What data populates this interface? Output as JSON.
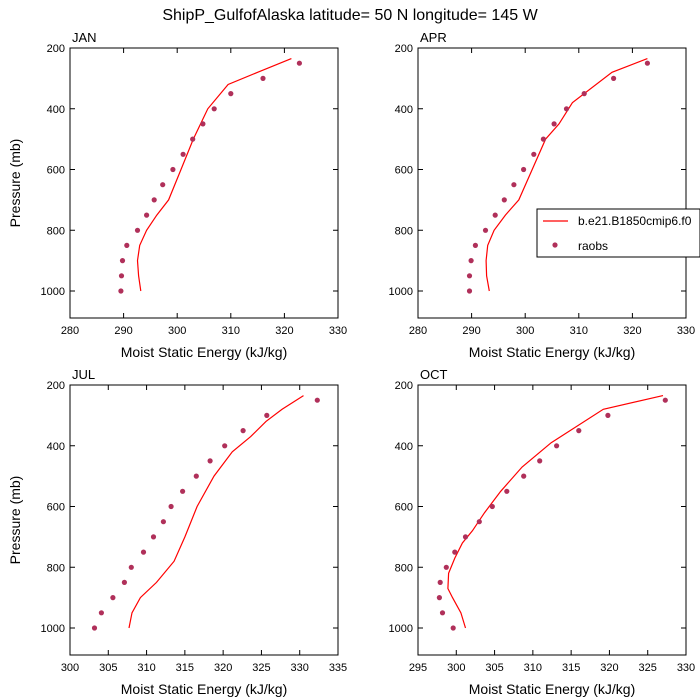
{
  "figure_title": "ShipP_GulfofAlaska  latitude= 50 N longitude= 145 W",
  "legend": {
    "model_label": "b.e21.B1850cmip6.f0",
    "obs_label": "raobs"
  },
  "colors": {
    "model_line": "#ff0000",
    "obs_marker": "#b0305a"
  },
  "chart_data": [
    {
      "type": "line",
      "title": "JAN",
      "xlabel": "Moist Static Energy (kJ/kg)",
      "ylabel": "Pressure (mb)",
      "xlim": [
        280,
        330
      ],
      "xticks": [
        280,
        290,
        300,
        310,
        320,
        330
      ],
      "ylim": [
        1000,
        200
      ],
      "yticks": [
        200,
        400,
        600,
        800,
        1000
      ],
      "series": [
        {
          "name": "b.e21.B1850cmip6.f0",
          "kind": "line",
          "x": [
            293.2,
            292.8,
            292.6,
            293.0,
            294.3,
            296.2,
            298.4,
            300.7,
            303.0,
            305.7,
            309.5,
            315.0,
            321.3
          ],
          "y": [
            1000,
            950,
            900,
            850,
            800,
            750,
            700,
            600,
            500,
            400,
            320,
            280,
            235
          ]
        },
        {
          "name": "raobs",
          "kind": "scatter",
          "x": [
            289.5,
            289.6,
            289.8,
            290.6,
            292.6,
            294.3,
            295.7,
            297.3,
            299.2,
            301.1,
            302.9,
            304.8,
            306.9,
            310.0,
            316.0,
            322.8
          ],
          "y": [
            1000,
            950,
            900,
            850,
            800,
            750,
            700,
            650,
            600,
            550,
            500,
            450,
            400,
            350,
            300,
            250
          ]
        }
      ]
    },
    {
      "type": "line",
      "title": "APR",
      "xlabel": "Moist Static Energy (kJ/kg)",
      "ylabel": "",
      "xlim": [
        280,
        330
      ],
      "xticks": [
        280,
        290,
        300,
        310,
        320,
        330
      ],
      "ylim": [
        1000,
        200
      ],
      "yticks": [
        200,
        400,
        600,
        800,
        1000
      ],
      "series": [
        {
          "name": "b.e21.B1850cmip6.f0",
          "kind": "line",
          "x": [
            293.3,
            292.8,
            292.7,
            293.0,
            294.2,
            296.3,
            298.8,
            301.3,
            303.8,
            306.3,
            308.8,
            316.2,
            322.8
          ],
          "y": [
            1000,
            950,
            900,
            850,
            800,
            750,
            700,
            600,
            500,
            450,
            380,
            280,
            235
          ]
        },
        {
          "name": "raobs",
          "kind": "scatter",
          "x": [
            289.6,
            289.6,
            289.9,
            290.7,
            292.6,
            294.4,
            296.1,
            297.9,
            299.7,
            301.6,
            303.4,
            305.4,
            307.7,
            311.0,
            316.5,
            322.8
          ],
          "y": [
            1000,
            950,
            900,
            850,
            800,
            750,
            700,
            650,
            600,
            550,
            500,
            450,
            400,
            350,
            300,
            250
          ]
        }
      ]
    },
    {
      "type": "line",
      "title": "JUL",
      "xlabel": "Moist Static Energy (kJ/kg)",
      "ylabel": "Pressure (mb)",
      "xlim": [
        300,
        335
      ],
      "xticks": [
        300,
        305,
        310,
        315,
        320,
        325,
        330,
        335
      ],
      "ylim": [
        1000,
        200
      ],
      "yticks": [
        200,
        400,
        600,
        800,
        1000
      ],
      "series": [
        {
          "name": "b.e21.B1850cmip6.f0",
          "kind": "line",
          "x": [
            307.7,
            308.1,
            309.2,
            311.3,
            313.6,
            315.0,
            316.6,
            318.8,
            321.2,
            323.6,
            325.6,
            327.7,
            330.5
          ],
          "y": [
            1000,
            950,
            900,
            850,
            780,
            700,
            600,
            500,
            420,
            370,
            320,
            280,
            235
          ]
        },
        {
          "name": "raobs",
          "kind": "scatter",
          "x": [
            303.2,
            304.1,
            305.6,
            307.1,
            308.0,
            309.6,
            310.9,
            312.2,
            313.2,
            314.7,
            316.5,
            318.3,
            320.2,
            322.6,
            325.7,
            332.3
          ],
          "y": [
            1000,
            950,
            900,
            850,
            800,
            750,
            700,
            650,
            600,
            550,
            500,
            450,
            400,
            350,
            300,
            250
          ]
        }
      ]
    },
    {
      "type": "line",
      "title": "OCT",
      "xlabel": "Moist Static Energy (kJ/kg)",
      "ylabel": "",
      "xlim": [
        295,
        330
      ],
      "xticks": [
        295,
        300,
        305,
        310,
        315,
        320,
        325,
        330
      ],
      "ylim": [
        1000,
        200
      ],
      "yticks": [
        200,
        400,
        600,
        800,
        1000
      ],
      "series": [
        {
          "name": "b.e21.B1850cmip6.f0",
          "kind": "line",
          "x": [
            301.2,
            300.6,
            299.5,
            298.9,
            299.0,
            299.8,
            300.8,
            302.1,
            303.7,
            305.8,
            308.6,
            312.4,
            319.2,
            327.0
          ],
          "y": [
            1000,
            950,
            900,
            870,
            820,
            770,
            720,
            680,
            620,
            550,
            470,
            390,
            280,
            235
          ]
        },
        {
          "name": "raobs",
          "kind": "scatter",
          "x": [
            299.6,
            298.2,
            297.8,
            297.9,
            298.7,
            299.8,
            301.2,
            303.0,
            304.7,
            306.6,
            308.8,
            310.9,
            313.1,
            316.0,
            319.8,
            327.3
          ],
          "y": [
            1000,
            950,
            900,
            850,
            800,
            750,
            700,
            650,
            600,
            550,
            500,
            450,
            400,
            350,
            300,
            250
          ]
        }
      ]
    }
  ]
}
